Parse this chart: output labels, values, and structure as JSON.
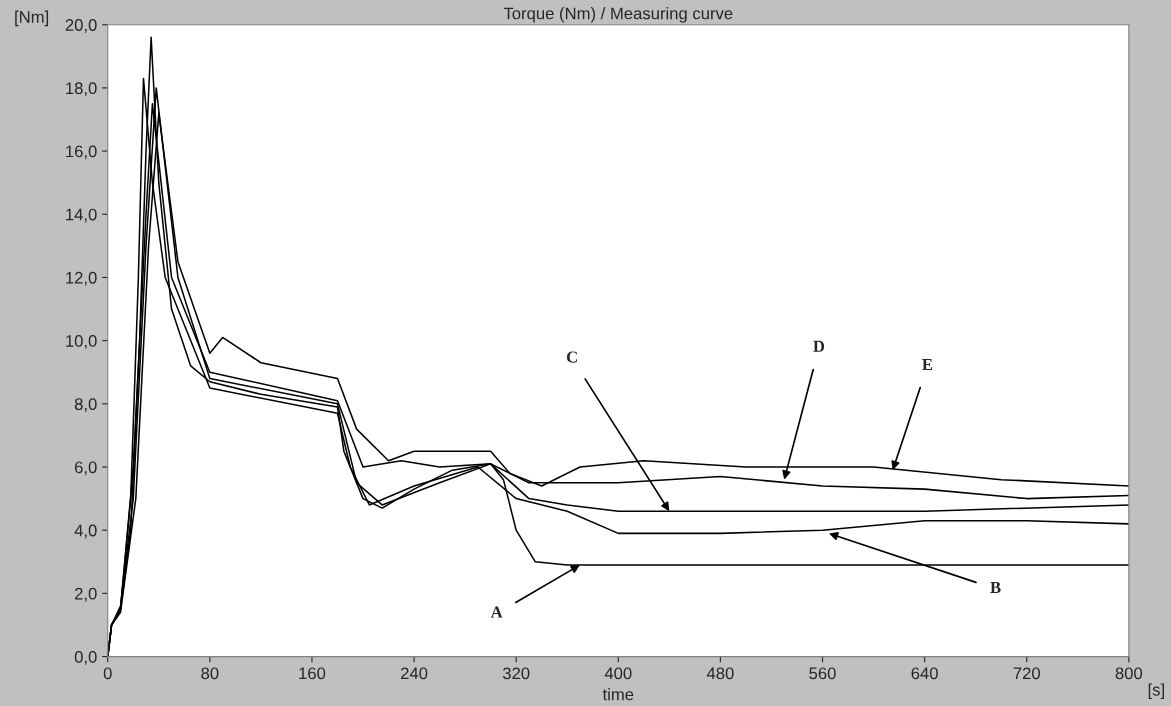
{
  "chart_data": {
    "type": "line",
    "title": "Torque (Nm) / Measuring curve",
    "xlabel": "time",
    "ylabel": "[Nm]",
    "xlim": [
      0,
      800
    ],
    "xticks": [
      0,
      80,
      160,
      240,
      320,
      400,
      480,
      560,
      640,
      720,
      800
    ],
    "ylim": [
      0,
      20
    ],
    "yticks": [
      {
        "value": 0,
        "label": "0,0"
      },
      {
        "value": 2,
        "label": "2,0"
      },
      {
        "value": 4,
        "label": "4,0"
      },
      {
        "value": 6,
        "label": "6,0"
      },
      {
        "value": 8,
        "label": "8,0"
      },
      {
        "value": 10,
        "label": "10,0"
      },
      {
        "value": 12,
        "label": "12,0"
      },
      {
        "value": 14,
        "label": "14,0"
      },
      {
        "value": 16,
        "label": "16,0"
      },
      {
        "value": 18,
        "label": "18,0"
      },
      {
        "value": 20,
        "label": "20,0"
      }
    ],
    "grid": false,
    "legend": false,
    "marker": "none",
    "line_style": "solid",
    "series": [
      {
        "color": "#000000",
        "x": [
          0,
          3,
          10,
          18,
          25,
          30,
          34,
          40,
          50,
          65,
          80,
          120,
          180,
          185,
          200,
          215,
          240,
          270,
          300,
          310,
          320,
          335,
          360,
          500,
          800
        ],
        "values": [
          0,
          1,
          1.5,
          4,
          10,
          16,
          19.6,
          15,
          11,
          9.2,
          8.7,
          8.3,
          7.9,
          6.5,
          5,
          4.7,
          5.3,
          5.9,
          6.1,
          5.6,
          4,
          3,
          2.9,
          2.9,
          2.9
        ]
      },
      {
        "color": "#000000",
        "x": [
          0,
          3,
          10,
          18,
          24,
          28,
          35,
          45,
          80,
          180,
          190,
          205,
          240,
          290,
          320,
          360,
          400,
          480,
          560,
          640,
          720,
          800
        ],
        "values": [
          0,
          1,
          1.5,
          5,
          12,
          18.3,
          15,
          12,
          8.5,
          7.7,
          6,
          4.8,
          5.4,
          6,
          5,
          4.6,
          3.9,
          3.9,
          4,
          4.3,
          4.3,
          4.2
        ]
      },
      {
        "color": "#000000",
        "x": [
          0,
          3,
          10,
          20,
          30,
          38,
          55,
          80,
          180,
          195,
          215,
          260,
          300,
          330,
          360,
          400,
          560,
          640,
          800
        ],
        "values": [
          0,
          1,
          1.6,
          5,
          13,
          18,
          12,
          8.8,
          8,
          5.5,
          4.8,
          5.5,
          6.1,
          5,
          4.8,
          4.6,
          4.6,
          4.6,
          4.8
        ]
      },
      {
        "color": "#000000",
        "x": [
          0,
          3,
          10,
          20,
          30,
          35,
          50,
          80,
          180,
          200,
          230,
          260,
          300,
          330,
          400,
          480,
          560,
          640,
          720,
          800
        ],
        "values": [
          0,
          1,
          1.5,
          6,
          14,
          17.5,
          12,
          9,
          8.1,
          6,
          6.2,
          6,
          6.1,
          5.5,
          5.5,
          5.7,
          5.4,
          5.3,
          5,
          5.1
        ]
      },
      {
        "color": "#000000",
        "x": [
          0,
          3,
          10,
          22,
          32,
          40,
          55,
          80,
          90,
          120,
          180,
          195,
          220,
          240,
          300,
          315,
          340,
          370,
          420,
          500,
          600,
          700,
          800
        ],
        "values": [
          0,
          1,
          1.4,
          5,
          13,
          17.2,
          12.5,
          9.6,
          10.1,
          9.3,
          8.8,
          7.2,
          6.2,
          6.5,
          6.5,
          5.8,
          5.4,
          6,
          6.2,
          6,
          6,
          5.6,
          5.4
        ]
      }
    ],
    "annotations": [
      {
        "text": "A",
        "x": 370,
        "y": 2.9
      },
      {
        "text": "B",
        "x": 565,
        "y": 3.9
      },
      {
        "text": "C",
        "x": 440,
        "y": 4.6
      },
      {
        "text": "D",
        "x": 530,
        "y": 5.6
      },
      {
        "text": "E",
        "x": 615,
        "y": 5.9
      },
      "[s]"
    ]
  }
}
